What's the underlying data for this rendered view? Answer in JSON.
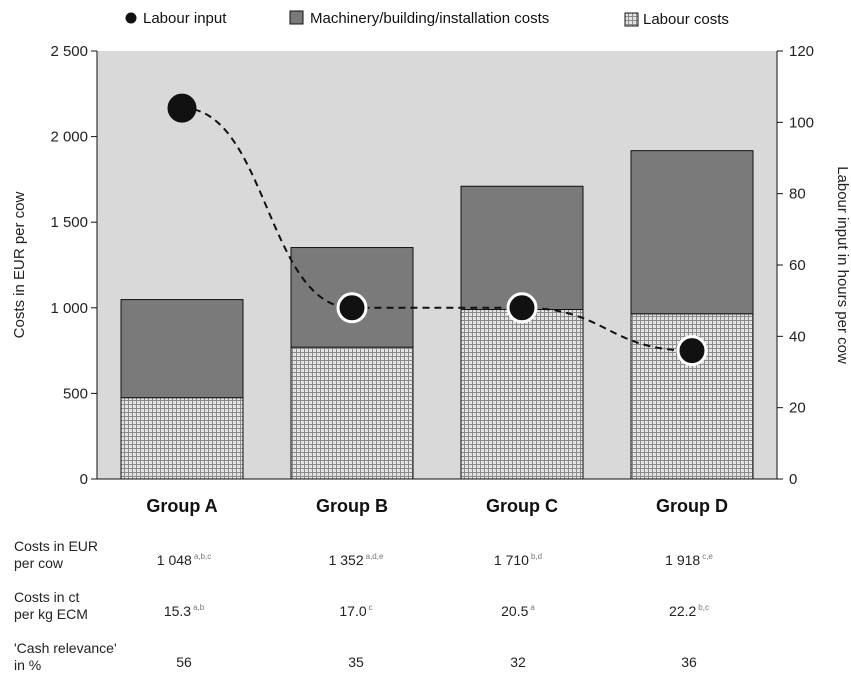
{
  "chart_data": {
    "type": "bar",
    "stacked": true,
    "categories": [
      "Group A",
      "Group B",
      "Group C",
      "Group D"
    ],
    "series": [
      {
        "name": "Labour costs",
        "kind": "bar",
        "axis": "left",
        "pattern": "crosshatch",
        "values": [
          475,
          770,
          990,
          965
        ]
      },
      {
        "name": "Machinery/building/installation costs",
        "kind": "bar",
        "axis": "left",
        "color": "#7a7a7a",
        "values": [
          573,
          582,
          720,
          953
        ]
      },
      {
        "name": "Labour input",
        "kind": "line",
        "axis": "right",
        "style": "dashed",
        "marker": "circle",
        "values": [
          104,
          48,
          48,
          36
        ]
      }
    ],
    "left_axis": {
      "label": "Costs in EUR per cow",
      "ylim": [
        0,
        2500
      ],
      "ticks": [
        0,
        500,
        1000,
        1500,
        2000,
        2500
      ],
      "tick_labels": [
        "0",
        "500",
        "1 000",
        "1 500",
        "2 000",
        "2 500"
      ]
    },
    "right_axis": {
      "label": "Labour input in hours per cow",
      "ylim": [
        0,
        120
      ],
      "ticks": [
        0,
        20,
        40,
        60,
        80,
        100,
        120
      ],
      "tick_labels": [
        "0",
        "20",
        "40",
        "60",
        "80",
        "100",
        "120"
      ]
    },
    "legend": {
      "placement": "top",
      "entries": [
        "Labour input",
        "Machinery/building/installation costs",
        "Labour costs"
      ]
    },
    "plot_background": "#d9d9d9",
    "grid": false
  },
  "table": {
    "rows": [
      {
        "label_lines": [
          "Costs in EUR",
          "per cow"
        ],
        "cells": [
          {
            "value": "1 048",
            "sup": "a,b,c"
          },
          {
            "value": "1 352",
            "sup": "a,d,e"
          },
          {
            "value": "1 710",
            "sup": "b,d"
          },
          {
            "value": "1 918",
            "sup": "c,e"
          }
        ]
      },
      {
        "label_lines": [
          "Costs in ct",
          "per kg ECM"
        ],
        "cells": [
          {
            "value": "15.3",
            "sup": "a,b"
          },
          {
            "value": "17.0",
            "sup": "c"
          },
          {
            "value": "20.5",
            "sup": "a"
          },
          {
            "value": "22.2",
            "sup": "b,c"
          }
        ]
      },
      {
        "label_lines": [
          "'Cash relevance'",
          "in %"
        ],
        "cells": [
          {
            "value": "56",
            "sup": ""
          },
          {
            "value": "35",
            "sup": ""
          },
          {
            "value": "32",
            "sup": ""
          },
          {
            "value": "36",
            "sup": ""
          }
        ]
      }
    ]
  }
}
